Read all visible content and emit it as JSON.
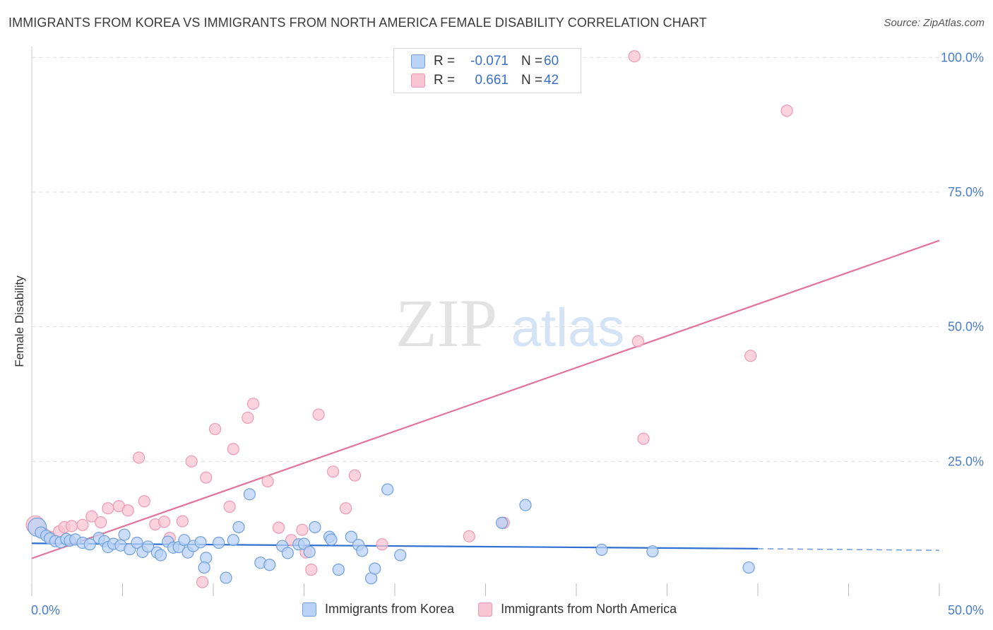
{
  "header": {
    "title": "IMMIGRANTS FROM KOREA VS IMMIGRANTS FROM NORTH AMERICA FEMALE DISABILITY CORRELATION CHART",
    "source": "Source: ZipAtlas.com"
  },
  "watermark": {
    "zip": "ZIP",
    "atlas": "atlas"
  },
  "legend_top": {
    "rows": [
      {
        "r_label": "R =",
        "r_value": "-0.071",
        "n_label": "N =",
        "n_value": "60"
      },
      {
        "r_label": "R =",
        "r_value": "0.661",
        "n_label": "N =",
        "n_value": "42"
      }
    ]
  },
  "legend_bottom": {
    "items": [
      {
        "label": "Immigrants from Korea"
      },
      {
        "label": "Immigrants from North America"
      }
    ]
  },
  "colors": {
    "korea_fill": "#b9d2f5",
    "korea_stroke": "#6f9fdc",
    "korea_line": "#2f6fd0",
    "na_fill": "#f8c4d4",
    "na_stroke": "#ec9ab3",
    "na_line": "#e2739a",
    "tick_text": "#4a7cc9",
    "grid": "#dddddd"
  },
  "chart_data": {
    "type": "scatter",
    "title": "IMMIGRANTS FROM KOREA VS IMMIGRANTS FROM NORTH AMERICA FEMALE DISABILITY CORRELATION CHART",
    "xlabel": "",
    "ylabel": "Female Disability",
    "xlim": [
      0,
      50
    ],
    "ylim": [
      0,
      102
    ],
    "x_tick_labels": [
      {
        "value": 0,
        "label": "0.0%"
      },
      {
        "value": 50,
        "label": "50.0%"
      }
    ],
    "y_tick_labels": [
      {
        "value": 25,
        "label": "25.0%"
      },
      {
        "value": 50,
        "label": "50.0%"
      },
      {
        "value": 75,
        "label": "75.0%"
      },
      {
        "value": 100,
        "label": "100.0%"
      }
    ],
    "grid": true,
    "series": [
      {
        "name": "Immigrants from Korea",
        "r": -0.071,
        "n": 60,
        "trend": {
          "x0": 0,
          "y0": 9.8,
          "x1": 40,
          "y1": 8.8,
          "dashed_to_x": 50,
          "dashed_to_y": 8.5
        },
        "points": [
          [
            0.3,
            12.8
          ],
          [
            0.5,
            11.8
          ],
          [
            0.8,
            11.2
          ],
          [
            1.0,
            10.7
          ],
          [
            1.3,
            10.2
          ],
          [
            1.6,
            10.0
          ],
          [
            1.9,
            10.6
          ],
          [
            2.1,
            10.3
          ],
          [
            2.4,
            10.5
          ],
          [
            2.8,
            9.9
          ],
          [
            3.2,
            9.6
          ],
          [
            3.7,
            10.8
          ],
          [
            4.0,
            10.2
          ],
          [
            4.2,
            9.1
          ],
          [
            4.5,
            9.7
          ],
          [
            4.9,
            9.4
          ],
          [
            5.1,
            11.4
          ],
          [
            5.4,
            8.7
          ],
          [
            5.8,
            9.9
          ],
          [
            6.1,
            8.2
          ],
          [
            6.4,
            9.2
          ],
          [
            6.9,
            8.1
          ],
          [
            7.1,
            7.6
          ],
          [
            7.5,
            10.1
          ],
          [
            7.8,
            9.0
          ],
          [
            8.1,
            9.1
          ],
          [
            8.4,
            10.4
          ],
          [
            8.6,
            8.1
          ],
          [
            8.9,
            9.3
          ],
          [
            9.3,
            10.0
          ],
          [
            9.6,
            7.1
          ],
          [
            9.5,
            5.3
          ],
          [
            10.3,
            9.9
          ],
          [
            10.7,
            3.4
          ],
          [
            11.1,
            10.4
          ],
          [
            11.4,
            12.8
          ],
          [
            12.0,
            18.9
          ],
          [
            12.6,
            6.2
          ],
          [
            13.1,
            5.8
          ],
          [
            13.8,
            9.3
          ],
          [
            14.1,
            8.0
          ],
          [
            14.7,
            9.6
          ],
          [
            15.0,
            9.7
          ],
          [
            15.3,
            8.2
          ],
          [
            15.6,
            12.8
          ],
          [
            16.4,
            11.0
          ],
          [
            16.5,
            10.5
          ],
          [
            16.9,
            4.9
          ],
          [
            17.6,
            11.0
          ],
          [
            18.0,
            9.5
          ],
          [
            18.2,
            8.4
          ],
          [
            18.7,
            3.3
          ],
          [
            18.9,
            5.1
          ],
          [
            19.6,
            19.8
          ],
          [
            20.3,
            7.6
          ],
          [
            25.9,
            13.6
          ],
          [
            27.2,
            16.9
          ],
          [
            31.4,
            8.6
          ],
          [
            34.2,
            8.3
          ],
          [
            39.5,
            5.3
          ]
        ]
      },
      {
        "name": "Immigrants from North America",
        "r": 0.661,
        "n": 42,
        "trend": {
          "x0": 0,
          "y0": 7.0,
          "x1": 50,
          "y1": 66.0
        },
        "points": [
          [
            0.2,
            13.2
          ],
          [
            0.6,
            11.8
          ],
          [
            1.0,
            11.0
          ],
          [
            1.5,
            12.0
          ],
          [
            1.8,
            12.8
          ],
          [
            2.2,
            13.0
          ],
          [
            2.8,
            13.2
          ],
          [
            3.3,
            14.8
          ],
          [
            3.8,
            13.7
          ],
          [
            4.2,
            16.3
          ],
          [
            4.8,
            16.7
          ],
          [
            5.3,
            15.9
          ],
          [
            5.9,
            25.7
          ],
          [
            6.2,
            17.6
          ],
          [
            6.8,
            13.3
          ],
          [
            7.3,
            13.8
          ],
          [
            7.6,
            10.8
          ],
          [
            8.3,
            13.9
          ],
          [
            8.8,
            25.0
          ],
          [
            9.4,
            2.6
          ],
          [
            9.6,
            22.0
          ],
          [
            10.1,
            31.0
          ],
          [
            10.9,
            16.6
          ],
          [
            11.1,
            27.3
          ],
          [
            11.9,
            33.1
          ],
          [
            12.2,
            35.7
          ],
          [
            13.0,
            21.3
          ],
          [
            13.6,
            12.7
          ],
          [
            14.3,
            10.4
          ],
          [
            14.9,
            12.3
          ],
          [
            15.1,
            8.1
          ],
          [
            15.4,
            4.9
          ],
          [
            15.8,
            33.7
          ],
          [
            16.6,
            23.1
          ],
          [
            17.3,
            16.3
          ],
          [
            17.8,
            22.4
          ],
          [
            19.3,
            9.6
          ],
          [
            24.1,
            11.1
          ],
          [
            26.0,
            13.6
          ],
          [
            33.4,
            47.3
          ],
          [
            33.7,
            29.2
          ],
          [
            39.6,
            44.6
          ],
          [
            33.2,
            100.2
          ],
          [
            41.6,
            90.1
          ]
        ]
      }
    ]
  }
}
